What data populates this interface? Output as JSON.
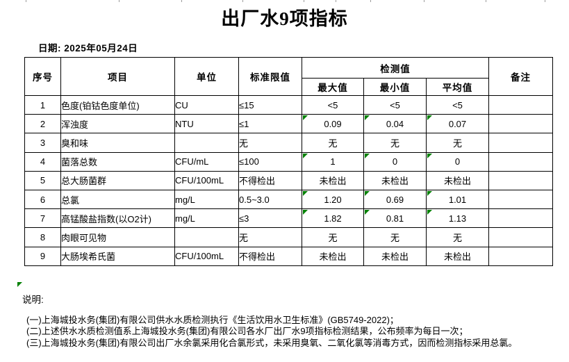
{
  "title": "出厂水9项指标",
  "date_label": "日期: 2025年05月24日",
  "table": {
    "headers": {
      "index": "序号",
      "item": "项目",
      "unit": "单位",
      "limit": "标准限值",
      "detection": "检测值",
      "max": "最大值",
      "min": "最小值",
      "avg": "平均值",
      "remark": "备注"
    },
    "rows": [
      {
        "no": "1",
        "item": "色度(铂钴色度单位)",
        "unit": "CU",
        "limit": "≤15",
        "max": "<5",
        "min": "<5",
        "avg": "<5",
        "remark": "",
        "flagged": false
      },
      {
        "no": "2",
        "item": "浑浊度",
        "unit": "NTU",
        "limit": "≤1",
        "max": "0.09",
        "min": "0.04",
        "avg": "0.07",
        "remark": "",
        "flagged": true
      },
      {
        "no": "3",
        "item": "臭和味",
        "unit": "",
        "limit": "无",
        "max": "无",
        "min": "无",
        "avg": "无",
        "remark": "",
        "flagged": false
      },
      {
        "no": "4",
        "item": "菌落总数",
        "unit": "CFU/mL",
        "limit": "≤100",
        "max": "1",
        "min": "0",
        "avg": "0",
        "remark": "",
        "flagged": true
      },
      {
        "no": "5",
        "item": "总大肠菌群",
        "unit": "CFU/100mL",
        "limit": "不得检出",
        "max": "未检出",
        "min": "未检出",
        "avg": "未检出",
        "remark": "",
        "flagged": false
      },
      {
        "no": "6",
        "item": "总氯",
        "unit": "mg/L",
        "limit": "0.5~3.0",
        "max": "1.20",
        "min": "0.69",
        "avg": "1.01",
        "remark": "",
        "flagged": true
      },
      {
        "no": "7",
        "item": "高锰酸盐指数(以O2计)",
        "unit": "mg/L",
        "limit": "≤3",
        "max": "1.82",
        "min": "0.81",
        "avg": "1.13",
        "remark": "",
        "flagged": true
      },
      {
        "no": "8",
        "item": "肉眼可见物",
        "unit": "",
        "limit": "无",
        "max": "无",
        "min": "无",
        "avg": "无",
        "remark": "",
        "flagged": false
      },
      {
        "no": "9",
        "item": "大肠埃希氏菌",
        "unit": "CFU/100mL",
        "limit": "不得检出",
        "max": "未检出",
        "min": "未检出",
        "avg": "未检出",
        "remark": "",
        "flagged": false
      }
    ]
  },
  "notes": {
    "label": "说明:",
    "lines": [
      "(一)上海城投水务(集团)有限公司供水水质检测执行《生活饮用水卫生标准》(GB5749-2022)；",
      "(二)上述供水水质检测值系上海城投水务(集团)有限公司各水厂出厂水9项指标检测结果，公布频率为每日一次；",
      "(三)上海城投水务(集团)有限公司出厂水余氯采用化合氯形式，未采用臭氧、二氧化氯等消毒方式，因而检测指标采用总氯。"
    ]
  },
  "colors": {
    "flag_green": "#008000"
  }
}
